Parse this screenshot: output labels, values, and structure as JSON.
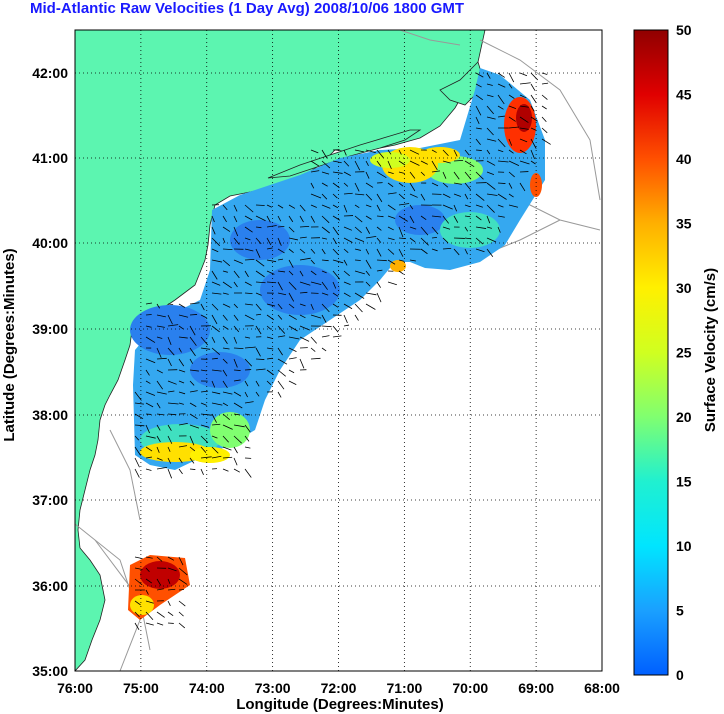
{
  "title": "Mid-Atlantic Raw Velocities (1 Day Avg) 2008/10/06 1800 GMT",
  "xlabel": "Longitude (Degrees:Minutes)",
  "ylabel": "Latitude (Degrees:Minutes)",
  "x_ticks": [
    "76:00",
    "75:00",
    "74:00",
    "73:00",
    "72:00",
    "71:00",
    "70:00",
    "69:00",
    "68:00"
  ],
  "y_ticks": [
    "42:00",
    "41:00",
    "40:00",
    "39:00",
    "38:00",
    "37:00",
    "36:00",
    "35:00"
  ],
  "colorbar": {
    "label": "Surface Velocity (cm/s)",
    "ticks": [
      "50",
      "45",
      "40",
      "35",
      "30",
      "25",
      "20",
      "15",
      "10",
      "5",
      "0"
    ],
    "range": [
      0,
      50
    ]
  },
  "colors": {
    "land": "#5cf5b0",
    "title": "#1a1aff",
    "arrows": "#000000",
    "contours": "#999999"
  }
}
